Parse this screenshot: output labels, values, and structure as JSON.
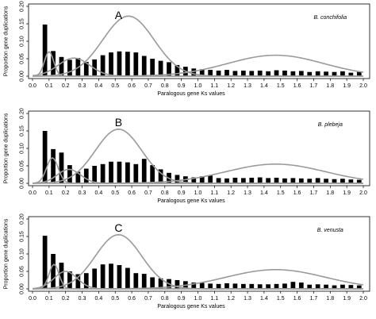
{
  "chart_data": [
    {
      "type": "bar",
      "panel_label": "A",
      "species_label": "B. conchifolia",
      "xlabel": "Paralogous gene Ks values",
      "ylabel": "Proportion gene duplications",
      "xlim": [
        0,
        2.0
      ],
      "ylim": [
        0,
        0.2
      ],
      "xticks": [
        "0.0",
        "0.1",
        "0.2",
        "0.3",
        "0.4",
        "0.5",
        "0.6",
        "0.7",
        "0.8",
        "0.9",
        "1.0",
        "1.1",
        "1.2",
        "1.3",
        "1.4",
        "1.5",
        "1.6",
        "1.7",
        "1.8",
        "1.9",
        "2.0"
      ],
      "yticks": [
        "0.00",
        "0.05",
        "0.10",
        "0.15",
        "0.20"
      ],
      "series": [
        {
          "kind": "bar",
          "x": [
            0.075,
            0.125,
            0.175,
            0.225,
            0.275,
            0.325,
            0.375,
            0.425,
            0.475,
            0.525,
            0.575,
            0.625,
            0.675,
            0.725,
            0.775,
            0.825,
            0.875,
            0.925,
            0.975,
            1.025,
            1.075,
            1.125,
            1.175,
            1.225,
            1.275,
            1.325,
            1.375,
            1.425,
            1.475,
            1.525,
            1.575,
            1.625,
            1.675,
            1.725,
            1.775,
            1.825,
            1.875,
            1.925,
            1.975
          ],
          "values": [
            0.148,
            0.072,
            0.055,
            0.047,
            0.052,
            0.041,
            0.048,
            0.06,
            0.068,
            0.071,
            0.07,
            0.068,
            0.058,
            0.05,
            0.044,
            0.04,
            0.032,
            0.027,
            0.022,
            0.02,
            0.018,
            0.016,
            0.018,
            0.015,
            0.016,
            0.015,
            0.016,
            0.014,
            0.017,
            0.016,
            0.014,
            0.015,
            0.012,
            0.014,
            0.013,
            0.012,
            0.014,
            0.01,
            0.012
          ]
        },
        {
          "kind": "curve",
          "mean": 0.58,
          "sd": 0.155,
          "peak": 0.172
        },
        {
          "kind": "curve",
          "mean": 1.47,
          "sd": 0.29,
          "peak": 0.06
        },
        {
          "kind": "curve",
          "mean": 0.25,
          "sd": 0.095,
          "peak": 0.052
        },
        {
          "kind": "curve",
          "mean": 0.1,
          "sd": 0.028,
          "peak": 0.07
        }
      ]
    },
    {
      "type": "bar",
      "panel_label": "B",
      "species_label": "B. plebeja",
      "xlabel": "Paralogous gene Ks values",
      "ylabel": "Proportion gene duplications",
      "xlim": [
        0,
        2.0
      ],
      "ylim": [
        0,
        0.2
      ],
      "xticks": [
        "0.0",
        "0.1",
        "0.2",
        "0.3",
        "0.4",
        "0.5",
        "0.6",
        "0.7",
        "0.8",
        "0.9",
        "1.0",
        "1.1",
        "1.2",
        "1.3",
        "1.4",
        "1.5",
        "1.6",
        "1.7",
        "1.8",
        "1.9",
        "2.0"
      ],
      "yticks": [
        "0.00",
        "0.05",
        "0.10",
        "0.15",
        "0.20"
      ],
      "series": [
        {
          "kind": "bar",
          "x": [
            0.075,
            0.125,
            0.175,
            0.225,
            0.275,
            0.325,
            0.375,
            0.425,
            0.475,
            0.525,
            0.575,
            0.625,
            0.675,
            0.725,
            0.775,
            0.825,
            0.875,
            0.925,
            0.975,
            1.025,
            1.075,
            1.125,
            1.175,
            1.225,
            1.275,
            1.325,
            1.375,
            1.425,
            1.475,
            1.525,
            1.575,
            1.625,
            1.675,
            1.725,
            1.775,
            1.825,
            1.875,
            1.925,
            1.975
          ],
          "values": [
            0.15,
            0.098,
            0.088,
            0.052,
            0.033,
            0.042,
            0.05,
            0.055,
            0.062,
            0.062,
            0.06,
            0.055,
            0.07,
            0.052,
            0.04,
            0.03,
            0.024,
            0.02,
            0.017,
            0.02,
            0.022,
            0.015,
            0.014,
            0.016,
            0.015,
            0.016,
            0.017,
            0.015,
            0.016,
            0.014,
            0.015,
            0.014,
            0.013,
            0.015,
            0.013,
            0.012,
            0.013,
            0.011,
            0.01
          ]
        },
        {
          "kind": "curve",
          "mean": 0.52,
          "sd": 0.14,
          "peak": 0.155
        },
        {
          "kind": "curve",
          "mean": 1.47,
          "sd": 0.3,
          "peak": 0.055
        },
        {
          "kind": "curve",
          "mean": 0.22,
          "sd": 0.07,
          "peak": 0.04
        },
        {
          "kind": "curve",
          "mean": 0.12,
          "sd": 0.035,
          "peak": 0.073
        }
      ]
    },
    {
      "type": "bar",
      "panel_label": "C",
      "species_label": "B. venusta",
      "xlabel": "Paralogous gene Ks values",
      "ylabel": "Proportion gene duplications",
      "xlim": [
        0,
        2.0
      ],
      "ylim": [
        0,
        0.2
      ],
      "xticks": [
        "0.0",
        "0.1",
        "0.2",
        "0.3",
        "0.4",
        "0.5",
        "0.6",
        "0.7",
        "0.8",
        "0.9",
        "1.0",
        "1.1",
        "1.2",
        "1.3",
        "1.4",
        "1.5",
        "1.6",
        "1.7",
        "1.8",
        "1.9",
        "2.0"
      ],
      "yticks": [
        "0.00",
        "0.05",
        "0.10",
        "0.15",
        "0.20"
      ],
      "series": [
        {
          "kind": "bar",
          "x": [
            0.075,
            0.125,
            0.175,
            0.225,
            0.275,
            0.325,
            0.375,
            0.425,
            0.475,
            0.525,
            0.575,
            0.625,
            0.675,
            0.725,
            0.775,
            0.825,
            0.875,
            0.925,
            0.975,
            1.025,
            1.075,
            1.125,
            1.175,
            1.225,
            1.275,
            1.325,
            1.375,
            1.425,
            1.475,
            1.525,
            1.575,
            1.625,
            1.675,
            1.725,
            1.775,
            1.825,
            1.875,
            1.925,
            1.975
          ],
          "values": [
            0.152,
            0.1,
            0.075,
            0.05,
            0.042,
            0.045,
            0.058,
            0.07,
            0.072,
            0.068,
            0.06,
            0.045,
            0.043,
            0.033,
            0.03,
            0.028,
            0.025,
            0.022,
            0.018,
            0.017,
            0.015,
            0.014,
            0.016,
            0.015,
            0.014,
            0.014,
            0.013,
            0.013,
            0.014,
            0.015,
            0.02,
            0.018,
            0.012,
            0.013,
            0.012,
            0.01,
            0.012,
            0.011,
            0.01
          ]
        },
        {
          "kind": "curve",
          "mean": 0.52,
          "sd": 0.14,
          "peak": 0.155
        },
        {
          "kind": "curve",
          "mean": 1.47,
          "sd": 0.3,
          "peak": 0.055
        },
        {
          "kind": "curve",
          "mean": 0.2,
          "sd": 0.07,
          "peak": 0.05
        },
        {
          "kind": "curve",
          "mean": 0.13,
          "sd": 0.03,
          "peak": 0.07
        }
      ]
    }
  ]
}
